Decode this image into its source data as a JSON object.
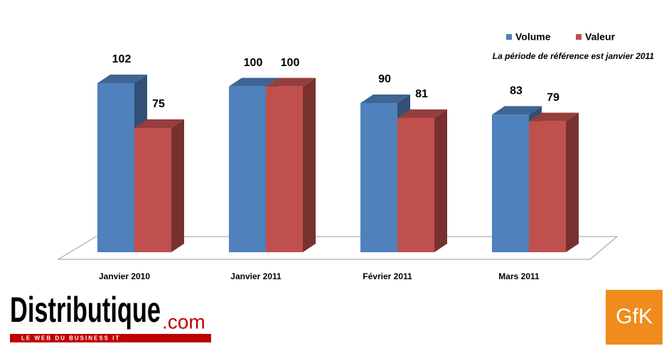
{
  "chart_data": {
    "type": "bar3d",
    "annotation": "La période de référence est janvier 2011",
    "categories": [
      "Janvier 2010",
      "Janvier 2011",
      "Février 2011",
      "Mars 2011"
    ],
    "series": [
      {
        "name": "Volume",
        "color": "#4f81bd",
        "values": [
          102,
          100,
          90,
          83
        ]
      },
      {
        "name": "Valeur",
        "color": "#c0504d",
        "values": [
          75,
          100,
          81,
          79
        ]
      }
    ],
    "legend": "top-right"
  },
  "branding": {
    "left_name": "Distributique",
    "left_suffix": ".com",
    "left_tagline": "LE WEB DU BUSINESS IT",
    "right_logo": "GfK"
  }
}
